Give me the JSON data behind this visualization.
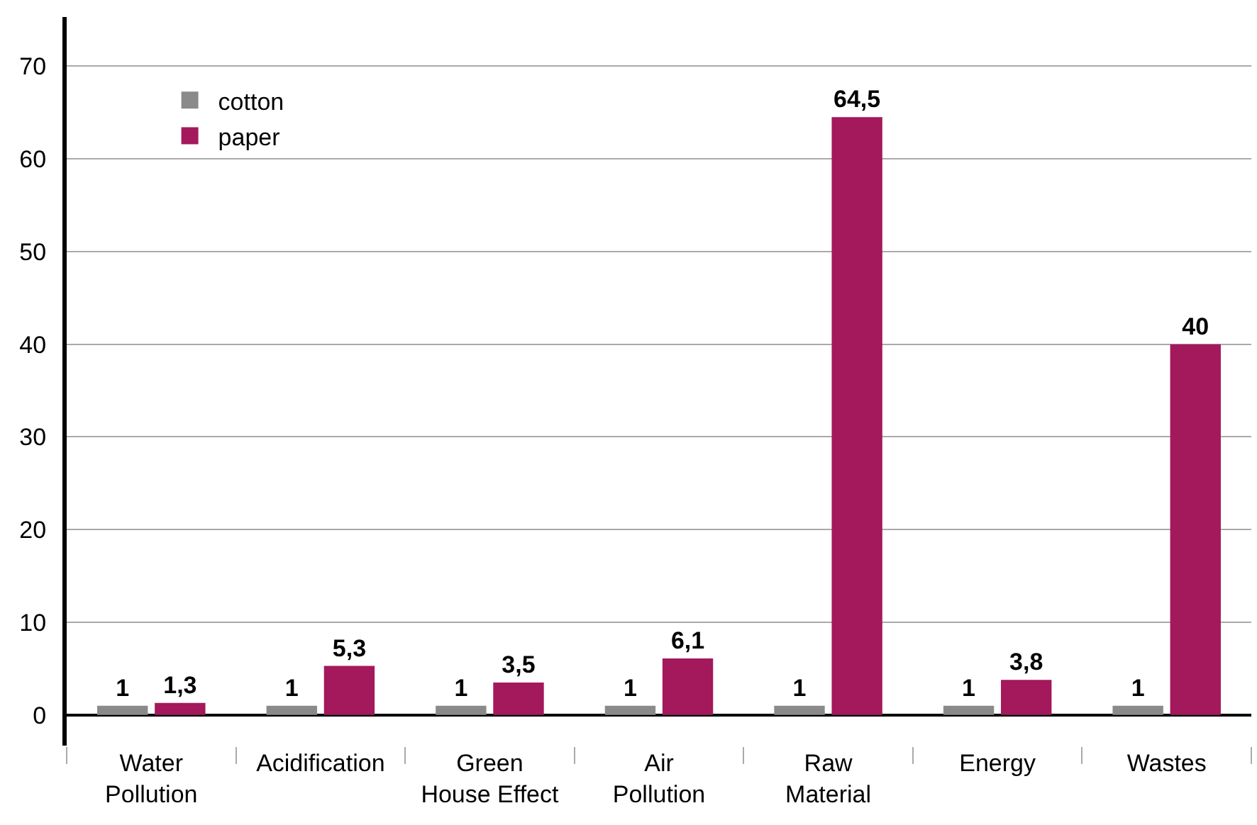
{
  "chart_data": {
    "type": "bar",
    "categories": [
      "Water\nPollution",
      "Acidification",
      "Green\nHouse Effect",
      "Air\nPollution",
      "Raw\nMaterial",
      "Energy",
      "Wastes"
    ],
    "series": [
      {
        "name": "cotton",
        "color": "#8a8a8a",
        "values": [
          1,
          1,
          1,
          1,
          1,
          1,
          1
        ],
        "value_labels": [
          "1",
          "1",
          "1",
          "1",
          "1",
          "1",
          "1"
        ]
      },
      {
        "name": "paper",
        "color": "#a3195b",
        "values": [
          1.3,
          5.3,
          3.5,
          6.1,
          64.5,
          3.8,
          40
        ],
        "value_labels": [
          "1,3",
          "5,3",
          "3,5",
          "6,1",
          "64,5",
          "3,8",
          "40"
        ]
      }
    ],
    "ylim": [
      -3.3,
      75.3
    ],
    "yticks": [
      0,
      10,
      20,
      30,
      40,
      50,
      60,
      70
    ],
    "grid": "y",
    "legend": "top left"
  }
}
